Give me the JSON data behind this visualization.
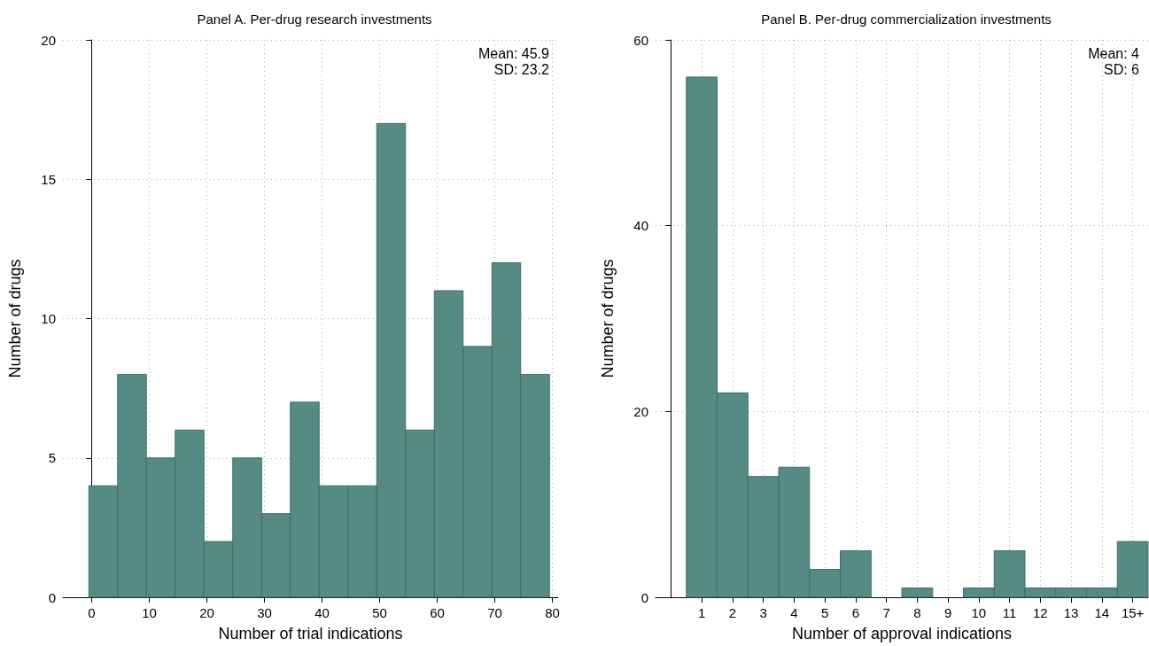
{
  "chart_data": [
    {
      "type": "histogram",
      "title": "Panel A. Per-drug research investments",
      "xlabel": "Number of trial indications",
      "ylabel": "Number of drugs",
      "bins": [
        -0.5,
        4.5,
        9.5,
        14.5,
        19.5,
        24.5,
        29.5,
        34.5,
        39.5,
        44.5,
        49.5,
        54.5,
        59.5,
        64.5,
        69.5,
        74.5,
        79.5
      ],
      "values": [
        4,
        8,
        5,
        6,
        2,
        5,
        3,
        7,
        4,
        4,
        17,
        6,
        11,
        9,
        12,
        8
      ],
      "color": "#558b84",
      "xlim": [
        -5,
        81
      ],
      "xticks": [
        0,
        10,
        20,
        30,
        40,
        50,
        60,
        70,
        80
      ],
      "ylim": [
        0,
        20
      ],
      "yticks": [
        0,
        5,
        10,
        15,
        20
      ],
      "grid": true,
      "annotations": [
        "Mean: 45.9",
        "SD: 23.2"
      ]
    },
    {
      "type": "histogram",
      "title": "Panel B. Per-drug commercialization investments",
      "xlabel": "Number of approval indications",
      "ylabel": "Number of drugs",
      "bins": [
        0.5,
        1.5,
        2.5,
        3.5,
        4.5,
        5.5,
        6.5,
        7.5,
        8.5,
        9.5,
        10.5,
        11.5,
        12.5,
        13.5,
        14.5,
        15.5
      ],
      "values": [
        56,
        22,
        13,
        14,
        3,
        5,
        0,
        1,
        0,
        1,
        5,
        1,
        1,
        1,
        6
      ],
      "color": "#558b84",
      "xlim": [
        -0.5,
        15.5
      ],
      "xticks": [
        1,
        2,
        3,
        4,
        5,
        6,
        7,
        8,
        9,
        10,
        11,
        12,
        13,
        14,
        {
          "value": 15,
          "label": "15+"
        }
      ],
      "ylim": [
        0,
        60
      ],
      "yticks": [
        0,
        20,
        40,
        60
      ],
      "grid": true,
      "annotations": [
        "Mean: 4",
        "SD: 6"
      ]
    }
  ]
}
